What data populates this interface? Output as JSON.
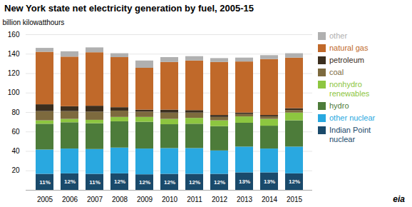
{
  "chart_data": {
    "type": "bar",
    "stacked": true,
    "title": "New York state net electricity generation by fuel, 2005-15",
    "ylabel": "billion kilowatthours",
    "caption": "eia",
    "categories": [
      2005,
      2006,
      2007,
      2008,
      2009,
      2010,
      2011,
      2012,
      2013,
      2014,
      2015
    ],
    "series": [
      {
        "name": "Indian Point\nnuclear",
        "color": "#1a4a6b",
        "values": [
          16.5,
          17.0,
          16.5,
          17.0,
          16.0,
          16.5,
          16.5,
          16.5,
          18.0,
          18.0,
          17.0
        ]
      },
      {
        "name": "other nuclear",
        "color": "#29a8e0",
        "values": [
          25.0,
          25.5,
          25.5,
          26.5,
          26.5,
          26.5,
          26.5,
          24.0,
          26.5,
          24.5,
          27.5
        ]
      },
      {
        "name": "hydro",
        "color": "#4d7c3a",
        "values": [
          26.5,
          27.0,
          26.5,
          27.0,
          27.5,
          24.5,
          25.0,
          25.0,
          24.5,
          23.5,
          27.0
        ]
      },
      {
        "name": "nonhydro\nrenewables",
        "color": "#8dc640",
        "values": [
          3.5,
          3.5,
          3.5,
          4.5,
          5.0,
          5.5,
          6.0,
          6.0,
          6.5,
          7.0,
          8.0
        ]
      },
      {
        "name": "coal",
        "color": "#7d6a3e",
        "values": [
          9.5,
          8.0,
          8.5,
          6.5,
          5.5,
          6.5,
          5.5,
          3.5,
          2.5,
          2.5,
          2.5
        ]
      },
      {
        "name": "petroleum",
        "color": "#3b2e1e",
        "values": [
          7.0,
          5.0,
          6.0,
          3.5,
          2.0,
          3.0,
          2.5,
          2.0,
          1.5,
          1.5,
          2.0
        ]
      },
      {
        "name": "natural gas",
        "color": "#c0692a",
        "values": [
          54.0,
          51.0,
          55.0,
          51.5,
          43.0,
          49.0,
          51.0,
          54.5,
          52.5,
          57.5,
          52.0
        ]
      },
      {
        "name": "other",
        "color": "#b0b0b0",
        "values": [
          4.0,
          5.5,
          5.0,
          4.0,
          7.5,
          5.0,
          4.5,
          4.0,
          4.0,
          4.0,
          4.5
        ]
      }
    ],
    "annotations": [
      {
        "x": 2005,
        "text": "11%"
      },
      {
        "x": 2006,
        "text": "12%"
      },
      {
        "x": 2007,
        "text": "11%"
      },
      {
        "x": 2008,
        "text": "12%"
      },
      {
        "x": 2009,
        "text": "12%"
      },
      {
        "x": 2010,
        "text": "12%"
      },
      {
        "x": 2011,
        "text": "12%"
      },
      {
        "x": 2012,
        "text": "12%"
      },
      {
        "x": 2013,
        "text": "13%"
      },
      {
        "x": 2014,
        "text": "13%"
      },
      {
        "x": 2015,
        "text": "12%"
      }
    ],
    "ylim": [
      0,
      160
    ],
    "yticks": [
      {
        "value": 0,
        "label": ""
      },
      20,
      40,
      60,
      80,
      100,
      120,
      140,
      160
    ],
    "grid": true,
    "legend": "right"
  }
}
